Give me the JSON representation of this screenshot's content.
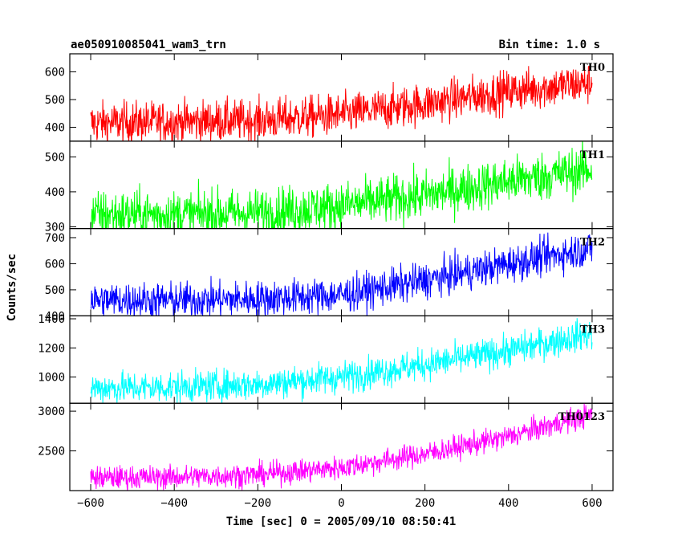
{
  "chart_data": {
    "type": "line",
    "title": "ae050910085041_wam3_trn",
    "subtitle": "Bin time: 1.0 s",
    "xlabel": "Time [sec] 0 = 2005/09/10 08:50:41",
    "ylabel": "Counts/sec",
    "xlim": [
      -650,
      650
    ],
    "xticks": [
      -600,
      -400,
      -200,
      0,
      200,
      400,
      600
    ],
    "x_data_range": [
      -600,
      600
    ],
    "series": [
      {
        "name": "TH0",
        "color": "#ff0000",
        "ylim": [
          350,
          665
        ],
        "yticks": [
          400,
          500,
          600
        ],
        "trend_x": [
          -600,
          -400,
          -200,
          0,
          200,
          400,
          600
        ],
        "trend_y": [
          415,
          420,
          425,
          445,
          485,
          530,
          560
        ],
        "noise": 38
      },
      {
        "name": "TH1",
        "color": "#00ff00",
        "ylim": [
          295,
          545
        ],
        "yticks": [
          300,
          400,
          500
        ],
        "trend_x": [
          -600,
          -400,
          -200,
          0,
          200,
          400,
          600
        ],
        "trend_y": [
          335,
          335,
          340,
          360,
          390,
          430,
          465
        ],
        "noise": 35
      },
      {
        "name": "TH2",
        "color": "#0000ff",
        "ylim": [
          400,
          735
        ],
        "yticks": [
          400,
          500,
          600,
          700
        ],
        "trend_x": [
          -600,
          -400,
          -200,
          0,
          200,
          400,
          600
        ],
        "trend_y": [
          460,
          460,
          465,
          480,
          535,
          600,
          660
        ],
        "noise": 35
      },
      {
        "name": "TH3",
        "color": "#00ffff",
        "ylim": [
          820,
          1420
        ],
        "yticks": [
          1000,
          1200,
          1400
        ],
        "trend_x": [
          -600,
          -400,
          -200,
          0,
          200,
          400,
          600
        ],
        "trend_y": [
          925,
          930,
          950,
          1000,
          1085,
          1180,
          1300
        ],
        "noise": 55
      },
      {
        "name": "TH0123",
        "color": "#ff00ff",
        "ylim": [
          2000,
          3100
        ],
        "yticks": [
          2500,
          3000
        ],
        "trend_x": [
          -600,
          -400,
          -200,
          0,
          200,
          400,
          600
        ],
        "trend_y": [
          2160,
          2170,
          2200,
          2290,
          2460,
          2680,
          2960
        ],
        "noise": 75
      }
    ]
  }
}
